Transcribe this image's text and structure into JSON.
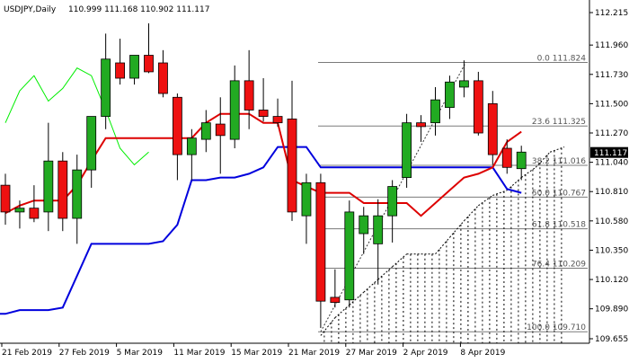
{
  "chart_data": {
    "type": "candlestick",
    "header": {
      "symbol_timeframe": "USDJPY,Daily",
      "ohlc": "110.999 111.168 110.902 111.117"
    },
    "ylim": [
      109.655,
      112.25
    ],
    "y_ticks": [
      "112.215",
      "111.960",
      "111.730",
      "111.500",
      "111.270",
      "111.040",
      "110.810",
      "110.580",
      "110.350",
      "110.120",
      "109.890",
      "109.655"
    ],
    "x_ticks": [
      "21 Feb 2019",
      "27 Feb 2019",
      "5 Mar 2019",
      "11 Mar 2019",
      "15 Mar 2019",
      "21 Mar 2019",
      "27 Mar 2019",
      "2 Apr 2019",
      "8 Apr 2019"
    ],
    "current_price": "111.117",
    "colors": {
      "up": "#22aa22",
      "down": "#ee1111",
      "outline": "#000000",
      "kijun": "#dd0000",
      "tenkan": "#0000dd",
      "chikou": "#00ee00",
      "fib": "#7a7a7a",
      "cloud": "#000000"
    },
    "fib_levels": [
      {
        "label": "0.0 111.824",
        "value": 111.824
      },
      {
        "label": "23.6 111.325",
        "value": 111.325
      },
      {
        "label": "38.2 111.016",
        "value": 111.016
      },
      {
        "label": "50.0 110.767",
        "value": 110.767
      },
      {
        "label": "61.8 110.518",
        "value": 110.518
      },
      {
        "label": "76.4 110.209",
        "value": 110.209
      },
      {
        "label": "100.0 109.710",
        "value": 109.71
      }
    ],
    "candles": [
      {
        "i": 0,
        "o": 110.86,
        "h": 110.95,
        "l": 110.55,
        "c": 110.65
      },
      {
        "i": 1,
        "o": 110.65,
        "h": 110.74,
        "l": 110.52,
        "c": 110.68
      },
      {
        "i": 2,
        "o": 110.68,
        "h": 110.86,
        "l": 110.57,
        "c": 110.6
      },
      {
        "i": 3,
        "o": 110.65,
        "h": 111.35,
        "l": 110.5,
        "c": 111.05
      },
      {
        "i": 4,
        "o": 111.05,
        "h": 111.12,
        "l": 110.5,
        "c": 110.6
      },
      {
        "i": 5,
        "o": 110.6,
        "h": 111.1,
        "l": 110.4,
        "c": 110.98
      },
      {
        "i": 6,
        "o": 110.98,
        "h": 111.4,
        "l": 110.84,
        "c": 111.4
      },
      {
        "i": 7,
        "o": 111.4,
        "h": 112.05,
        "l": 111.3,
        "c": 111.85
      },
      {
        "i": 8,
        "o": 111.82,
        "h": 112.01,
        "l": 111.65,
        "c": 111.7
      },
      {
        "i": 9,
        "o": 111.7,
        "h": 111.88,
        "l": 111.65,
        "c": 111.88
      },
      {
        "i": 10,
        "o": 111.88,
        "h": 112.13,
        "l": 111.74,
        "c": 111.75
      },
      {
        "i": 11,
        "o": 111.82,
        "h": 111.92,
        "l": 111.55,
        "c": 111.58
      },
      {
        "i": 12,
        "o": 111.55,
        "h": 111.58,
        "l": 110.9,
        "c": 111.1
      },
      {
        "i": 13,
        "o": 111.1,
        "h": 111.3,
        "l": 110.9,
        "c": 111.23
      },
      {
        "i": 14,
        "o": 111.22,
        "h": 111.45,
        "l": 111.12,
        "c": 111.35
      },
      {
        "i": 15,
        "o": 111.34,
        "h": 111.55,
        "l": 110.95,
        "c": 111.25
      },
      {
        "i": 16,
        "o": 111.22,
        "h": 111.8,
        "l": 111.15,
        "c": 111.68
      },
      {
        "i": 17,
        "o": 111.68,
        "h": 111.92,
        "l": 111.3,
        "c": 111.45
      },
      {
        "i": 18,
        "o": 111.45,
        "h": 111.7,
        "l": 111.36,
        "c": 111.4
      },
      {
        "i": 19,
        "o": 111.4,
        "h": 111.54,
        "l": 111.32,
        "c": 111.35
      },
      {
        "i": 20,
        "o": 111.38,
        "h": 111.68,
        "l": 110.58,
        "c": 110.65
      },
      {
        "i": 21,
        "o": 110.62,
        "h": 110.95,
        "l": 110.4,
        "c": 110.88
      },
      {
        "i": 22,
        "o": 110.88,
        "h": 110.95,
        "l": 109.74,
        "c": 109.95
      },
      {
        "i": 23,
        "o": 109.98,
        "h": 110.2,
        "l": 109.9,
        "c": 109.94
      },
      {
        "i": 24,
        "o": 109.96,
        "h": 110.74,
        "l": 109.9,
        "c": 110.65
      },
      {
        "i": 25,
        "o": 110.48,
        "h": 110.69,
        "l": 110.32,
        "c": 110.62
      },
      {
        "i": 26,
        "o": 110.4,
        "h": 110.75,
        "l": 110.08,
        "c": 110.62
      },
      {
        "i": 27,
        "o": 110.62,
        "h": 110.9,
        "l": 110.41,
        "c": 110.85
      },
      {
        "i": 28,
        "o": 110.92,
        "h": 111.42,
        "l": 110.84,
        "c": 111.35
      },
      {
        "i": 29,
        "o": 111.35,
        "h": 111.41,
        "l": 111.2,
        "c": 111.32
      },
      {
        "i": 30,
        "o": 111.35,
        "h": 111.63,
        "l": 111.25,
        "c": 111.53
      },
      {
        "i": 31,
        "o": 111.47,
        "h": 111.72,
        "l": 111.38,
        "c": 111.67
      },
      {
        "i": 32,
        "o": 111.63,
        "h": 111.84,
        "l": 111.55,
        "c": 111.68
      },
      {
        "i": 33,
        "o": 111.68,
        "h": 111.75,
        "l": 111.25,
        "c": 111.27
      },
      {
        "i": 34,
        "o": 111.5,
        "h": 111.6,
        "l": 111.02,
        "c": 111.1
      },
      {
        "i": 35,
        "o": 111.15,
        "h": 111.22,
        "l": 110.95,
        "c": 111.0
      },
      {
        "i": 36,
        "o": 110.99,
        "h": 111.17,
        "l": 110.9,
        "c": 111.12
      }
    ],
    "kijun": [
      [
        0,
        110.64
      ],
      [
        1,
        110.7
      ],
      [
        2,
        110.74
      ],
      [
        3,
        110.74
      ],
      [
        4,
        110.74
      ],
      [
        5,
        110.86
      ],
      [
        6,
        111.05
      ],
      [
        7,
        111.23
      ],
      [
        8,
        111.23
      ],
      [
        9,
        111.23
      ],
      [
        10,
        111.23
      ],
      [
        11,
        111.23
      ],
      [
        12,
        111.23
      ],
      [
        13,
        111.23
      ],
      [
        14,
        111.35
      ],
      [
        15,
        111.42
      ],
      [
        16,
        111.42
      ],
      [
        17,
        111.42
      ],
      [
        18,
        111.35
      ],
      [
        19,
        111.35
      ],
      [
        20,
        110.9
      ],
      [
        21,
        110.85
      ],
      [
        22,
        110.8
      ],
      [
        23,
        110.8
      ],
      [
        24,
        110.8
      ],
      [
        25,
        110.72
      ],
      [
        26,
        110.72
      ],
      [
        27,
        110.72
      ],
      [
        28,
        110.72
      ],
      [
        29,
        110.62
      ],
      [
        30,
        110.72
      ],
      [
        31,
        110.82
      ],
      [
        32,
        110.92
      ],
      [
        33,
        110.95
      ],
      [
        34,
        111.0
      ],
      [
        35,
        111.2
      ],
      [
        36,
        111.28
      ]
    ],
    "tenkan": [
      [
        -1,
        109.85
      ],
      [
        0,
        109.85
      ],
      [
        1,
        109.88
      ],
      [
        2,
        109.88
      ],
      [
        3,
        109.88
      ],
      [
        4,
        109.9
      ],
      [
        5,
        110.15
      ],
      [
        6,
        110.4
      ],
      [
        7,
        110.4
      ],
      [
        8,
        110.4
      ],
      [
        9,
        110.4
      ],
      [
        10,
        110.4
      ],
      [
        11,
        110.42
      ],
      [
        12,
        110.55
      ],
      [
        13,
        110.9
      ],
      [
        14,
        110.9
      ],
      [
        15,
        110.92
      ],
      [
        16,
        110.92
      ],
      [
        17,
        110.95
      ],
      [
        18,
        111.0
      ],
      [
        19,
        111.16
      ],
      [
        20,
        111.16
      ],
      [
        21,
        111.16
      ],
      [
        22,
        111.0
      ],
      [
        23,
        111.0
      ],
      [
        24,
        111.0
      ],
      [
        25,
        111.0
      ],
      [
        26,
        111.0
      ],
      [
        27,
        111.0
      ],
      [
        28,
        111.0
      ],
      [
        29,
        111.0
      ],
      [
        30,
        111.0
      ],
      [
        31,
        111.0
      ],
      [
        32,
        111.0
      ],
      [
        33,
        111.0
      ],
      [
        34,
        111.0
      ],
      [
        35,
        110.83
      ],
      [
        36,
        110.8
      ]
    ],
    "chikou": [
      [
        0,
        111.35
      ],
      [
        1,
        111.6
      ],
      [
        2,
        111.72
      ],
      [
        3,
        111.52
      ],
      [
        4,
        111.62
      ],
      [
        5,
        111.78
      ],
      [
        6,
        111.72
      ],
      [
        7,
        111.45
      ],
      [
        8,
        111.15
      ],
      [
        9,
        111.02
      ],
      [
        10,
        111.12
      ]
    ],
    "cloud_lower": [
      [
        22,
        109.68
      ],
      [
        23,
        109.82
      ],
      [
        24,
        109.92
      ],
      [
        25,
        110.02
      ],
      [
        26,
        110.12
      ],
      [
        27,
        110.22
      ],
      [
        28,
        110.32
      ],
      [
        29,
        110.32
      ],
      [
        30,
        110.32
      ],
      [
        31,
        110.45
      ],
      [
        32,
        110.58
      ],
      [
        33,
        110.7
      ],
      [
        34,
        110.78
      ],
      [
        35,
        110.82
      ],
      [
        36,
        110.92
      ],
      [
        37,
        111.0
      ],
      [
        38,
        111.12
      ],
      [
        39,
        111.16
      ]
    ]
  }
}
